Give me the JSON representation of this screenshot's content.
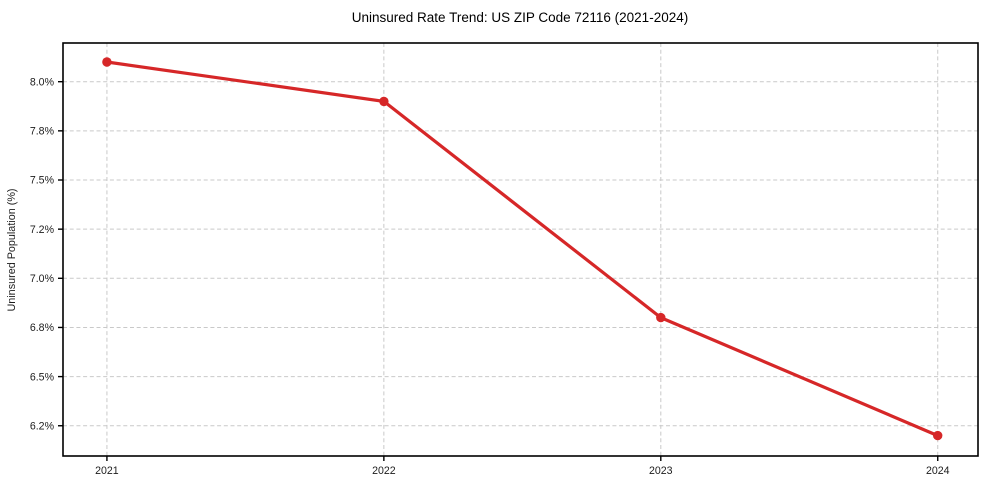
{
  "figure": {
    "background": "#ffffff"
  },
  "chart_data": {
    "type": "line",
    "title": "Uninsured Rate Trend: US ZIP Code 72116 (2021-2024)",
    "xlabel": "",
    "ylabel": "Uninsured Population (%)",
    "x": [
      "2021",
      "2022",
      "2023",
      "2024"
    ],
    "series": [
      {
        "name": "Uninsured rate",
        "values": [
          8.08,
          7.92,
          6.84,
          6.16
        ],
        "color": "#d62728",
        "marker": "circle"
      }
    ],
    "x_axis": {
      "tick_labels": [
        "2021",
        "2022",
        "2023",
        "2024"
      ]
    },
    "y_axis": {
      "tick_labels": [
        "8.0%",
        "7.8%",
        "7.5%",
        "7.2%",
        "7.0%",
        "6.8%",
        "6.5%",
        "6.2%"
      ],
      "tick_values": [
        8.0,
        7.8,
        7.5,
        7.2,
        7.0,
        6.8,
        6.5,
        6.2
      ],
      "ticks_evenly_spaced": true
    },
    "grid": {
      "show": true,
      "style": "dashed",
      "color": "#c9c9c9"
    },
    "legend": {
      "position": "none"
    },
    "styles": {
      "line_color": "#d62728",
      "spine_color": "#000000",
      "tick_text_color": "#1c1c1c",
      "plot_background": "#ffffff"
    }
  }
}
